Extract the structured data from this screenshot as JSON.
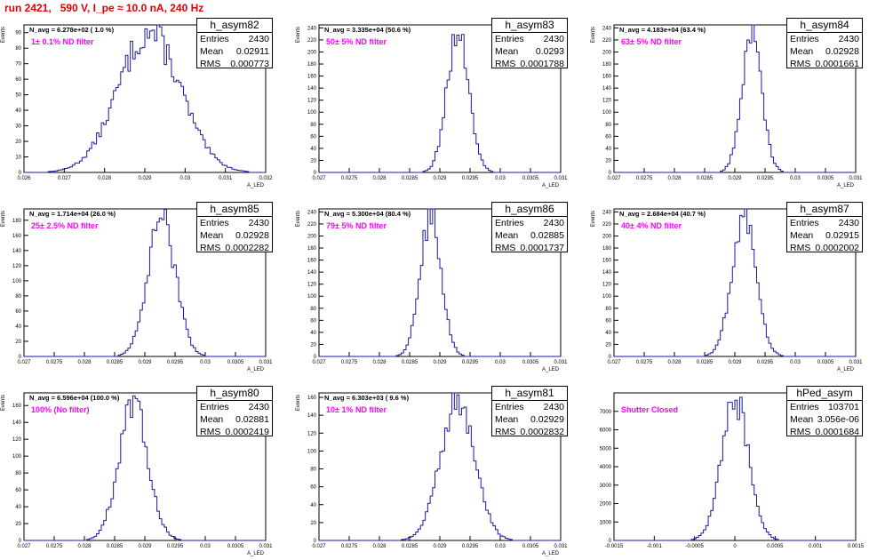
{
  "page_title": "run 2421,   590 V, I_pe ≈ 10.0 nA, 240 Hz",
  "stats_labels": {
    "entries": "Entries",
    "mean": "Mean",
    "rms": "RMS"
  },
  "colors": {
    "histogram": "#1a1aa6",
    "title": "#e00000",
    "filter_label": "#ff00ff"
  },
  "chart_data": [
    {
      "type": "histogram",
      "name": "h_asym82",
      "navg": "N_avg = 6.278e+02 ( 1.0 %)",
      "filter": "1± 0.1% ND filter",
      "entries": "2430",
      "mean": "0.02911",
      "rms": "0.000773",
      "ylabel": "Events",
      "xlabel": "A_LED",
      "xlim": [
        0.026,
        0.032
      ],
      "ylim": [
        0,
        95
      ],
      "xticks": [
        "0.026",
        "0.027",
        "0.028",
        "0.029",
        "0.03",
        "0.031",
        "0.032"
      ],
      "yticks": [
        0,
        10,
        20,
        30,
        40,
        50,
        60,
        70,
        80,
        90
      ],
      "center": 0.02911,
      "sigma": 0.000773,
      "peak": 90
    },
    {
      "type": "histogram",
      "name": "h_asym83",
      "navg": "N_avg = 3.335e+04 (50.6 %)",
      "filter": "50± 5% ND filter",
      "entries": "2430",
      "mean": "0.0293",
      "rms": "0.0001788",
      "ylabel": "Events",
      "xlabel": "A_LED",
      "xlim": [
        0.027,
        0.031
      ],
      "ylim": [
        0,
        245
      ],
      "xticks": [
        "0.027",
        "0.0275",
        "0.028",
        "0.0285",
        "0.029",
        "0.0295",
        "0.03",
        "0.0305",
        "0.031"
      ],
      "yticks": [
        0,
        20,
        40,
        60,
        80,
        100,
        120,
        140,
        160,
        180,
        200,
        220,
        240
      ],
      "center": 0.0293,
      "sigma": 0.0001788,
      "peak": 235
    },
    {
      "type": "histogram",
      "name": "h_asym84",
      "navg": "N_avg = 4.183e+04 (63.4 %)",
      "filter": "63± 5% ND filter",
      "entries": "2430",
      "mean": "0.02928",
      "rms": "0.0001661",
      "ylabel": "Events",
      "xlabel": "A_LED",
      "xlim": [
        0.027,
        0.031
      ],
      "ylim": [
        0,
        245
      ],
      "xticks": [
        "0.027",
        "0.0275",
        "0.028",
        "0.0285",
        "0.029",
        "0.0295",
        "0.03",
        "0.0305",
        "0.031"
      ],
      "yticks": [
        0,
        20,
        40,
        60,
        80,
        100,
        120,
        140,
        160,
        180,
        200,
        220,
        240
      ],
      "center": 0.02928,
      "sigma": 0.0001661,
      "peak": 225
    },
    {
      "type": "histogram",
      "name": "h_asym85",
      "navg": "N_avg = 1.714e+04 (26.0 %)",
      "filter": "25± 2.5% ND filter",
      "entries": "2430",
      "mean": "0.02928",
      "rms": "0.0002282",
      "ylabel": "Events",
      "xlabel": "A_LED",
      "xlim": [
        0.027,
        0.031
      ],
      "ylim": [
        0,
        195
      ],
      "xticks": [
        "0.027",
        "0.0275",
        "0.028",
        "0.0285",
        "0.029",
        "0.0295",
        "0.03",
        "0.0305",
        "0.031"
      ],
      "yticks": [
        0,
        20,
        40,
        60,
        80,
        100,
        120,
        140,
        160,
        180
      ],
      "center": 0.02928,
      "sigma": 0.0002282,
      "peak": 182
    },
    {
      "type": "histogram",
      "name": "h_asym86",
      "navg": "N_avg = 5.300e+04 (80.4 %)",
      "filter": "79± 5% ND filter",
      "entries": "2430",
      "mean": "0.02885",
      "rms": "0.0001737",
      "ylabel": "Events",
      "xlabel": "A_LED",
      "xlim": [
        0.027,
        0.031
      ],
      "ylim": [
        0,
        245
      ],
      "xticks": [
        "0.027",
        "0.0275",
        "0.028",
        "0.0285",
        "0.029",
        "0.0295",
        "0.03",
        "0.0305",
        "0.031"
      ],
      "yticks": [
        0,
        20,
        40,
        60,
        80,
        100,
        120,
        140,
        160,
        180,
        200,
        220,
        240
      ],
      "center": 0.02885,
      "sigma": 0.0001737,
      "peak": 232
    },
    {
      "type": "histogram",
      "name": "h_asym87",
      "navg": "N_avg = 2.684e+04 (40.7 %)",
      "filter": "40± 4% ND filter",
      "entries": "2430",
      "mean": "0.02915",
      "rms": "0.0002002",
      "ylabel": "Events",
      "xlabel": "A_LED",
      "xlim": [
        0.027,
        0.031
      ],
      "ylim": [
        0,
        245
      ],
      "xticks": [
        "0.027",
        "0.0275",
        "0.028",
        "0.0285",
        "0.029",
        "0.0295",
        "0.03",
        "0.0305",
        "0.031"
      ],
      "yticks": [
        0,
        20,
        40,
        60,
        80,
        100,
        120,
        140,
        160,
        180,
        200,
        220,
        240
      ],
      "center": 0.02915,
      "sigma": 0.0002002,
      "peak": 230
    },
    {
      "type": "histogram",
      "name": "h_asym80",
      "navg": "N_avg = 6.596e+04 (100.0 %)",
      "filter": "100% (No filter)",
      "entries": "2430",
      "mean": "0.02881",
      "rms": "0.0002419",
      "ylabel": "Events",
      "xlabel": "A_LED",
      "xlim": [
        0.027,
        0.031
      ],
      "ylim": [
        0,
        175
      ],
      "xticks": [
        "0.027",
        "0.0275",
        "0.028",
        "0.0285",
        "0.029",
        "0.0295",
        "0.03",
        "0.0305",
        "0.031"
      ],
      "yticks": [
        0,
        20,
        40,
        60,
        80,
        100,
        120,
        140,
        160
      ],
      "center": 0.02881,
      "sigma": 0.0002419,
      "peak": 160
    },
    {
      "type": "histogram",
      "name": "h_asym81",
      "navg": "N_avg = 6.303e+03 ( 9.6 %)",
      "filter": "10± 1% ND filter",
      "entries": "2430",
      "mean": "0.02929",
      "rms": "0.0002832",
      "ylabel": "Events",
      "xlabel": "A_LED",
      "xlim": [
        0.027,
        0.031
      ],
      "ylim": [
        0,
        165
      ],
      "xticks": [
        "0.027",
        "0.0275",
        "0.028",
        "0.0285",
        "0.029",
        "0.0295",
        "0.03",
        "0.0305",
        "0.031"
      ],
      "yticks": [
        0,
        20,
        40,
        60,
        80,
        100,
        120,
        140,
        160
      ],
      "center": 0.02929,
      "sigma": 0.0002832,
      "peak": 155
    },
    {
      "type": "histogram",
      "name": "hPed_asym",
      "navg": "",
      "filter": "Shutter Closed",
      "entries": "103701",
      "mean": "3.056e-06",
      "rms": "0.0001684",
      "ylabel": "",
      "xlabel": "",
      "xlim": [
        -0.0015,
        0.0015
      ],
      "ylim": [
        0,
        8000
      ],
      "xticks": [
        "-0.0015",
        "-0.001",
        "-0.0005",
        "0",
        "0.0005",
        "0.001",
        "0.0015"
      ],
      "yticks": [
        0,
        1000,
        2000,
        3000,
        4000,
        5000,
        6000,
        7000
      ],
      "center": 3.056e-06,
      "sigma": 0.0001684,
      "peak": 7600
    }
  ]
}
